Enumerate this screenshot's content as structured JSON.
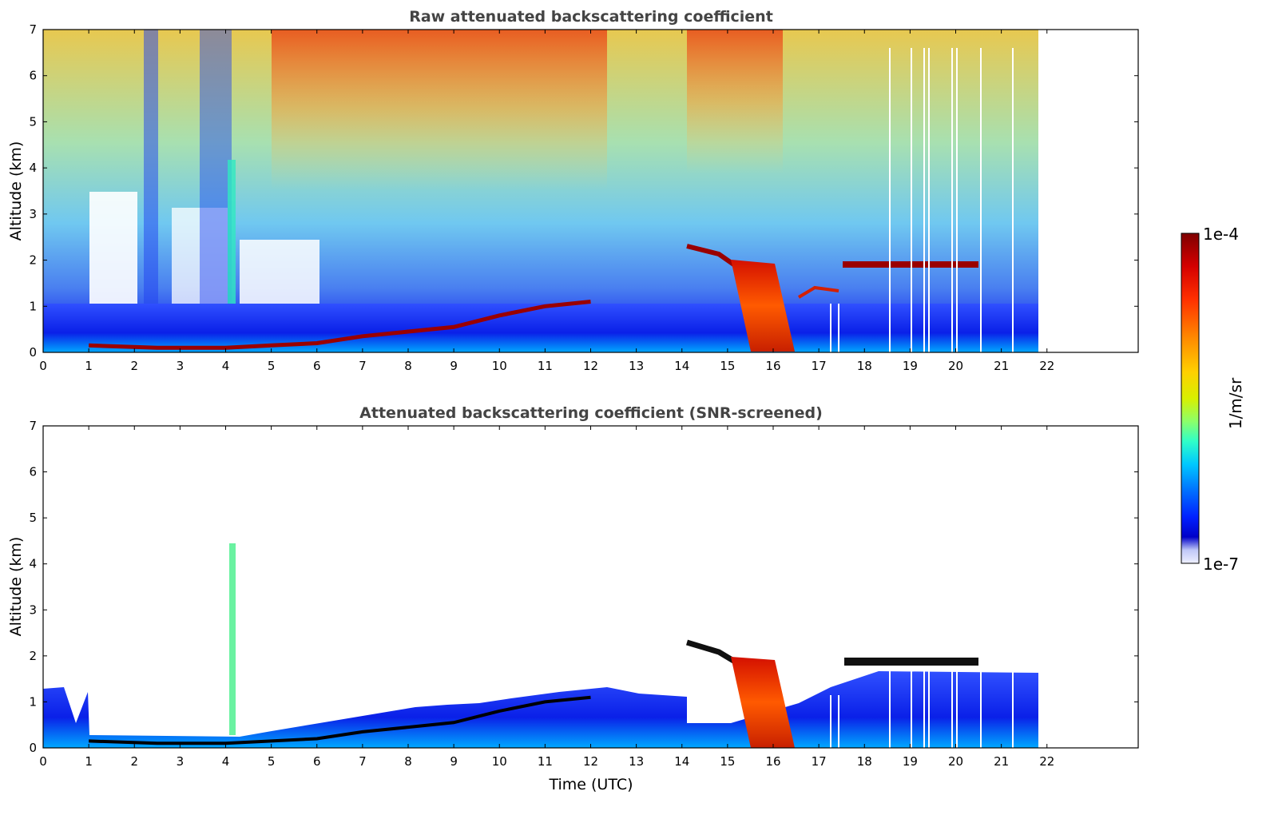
{
  "chart_data": [
    {
      "type": "heatmap",
      "title": "Raw attenuated backscattering coefficient",
      "xlabel": "",
      "ylabel": "Altitude (km)",
      "xlim": [
        0,
        24
      ],
      "ylim": [
        0,
        7
      ],
      "x_ticks": [
        "0",
        "1",
        "2",
        "3",
        "4",
        "5",
        "6",
        "7",
        "8",
        "9",
        "10",
        "11",
        "12",
        "13",
        "14",
        "15",
        "16",
        "17",
        "18",
        "19",
        "20",
        "21",
        "22"
      ],
      "y_ticks": [
        "0",
        "1",
        "2",
        "3",
        "4",
        "5",
        "6",
        "7"
      ],
      "data_end_time": 21.8,
      "boundary_layer_top": [
        {
          "x": 1.0,
          "y": 0.15
        },
        {
          "x": 2.5,
          "y": 0.1
        },
        {
          "x": 4.0,
          "y": 0.1
        },
        {
          "x": 5.0,
          "y": 0.15
        },
        {
          "x": 6.0,
          "y": 0.2
        },
        {
          "x": 7.0,
          "y": 0.35
        },
        {
          "x": 8.0,
          "y": 0.45
        },
        {
          "x": 9.0,
          "y": 0.55
        },
        {
          "x": 10.0,
          "y": 0.8
        },
        {
          "x": 11.0,
          "y": 1.0
        },
        {
          "x": 12.0,
          "y": 1.1
        }
      ],
      "cloud_layers": [
        {
          "x0": 14.0,
          "x1": 15.5,
          "y0": 2.3,
          "y1": 1.9
        },
        {
          "x0": 17.5,
          "x1": 20.5,
          "y0": 1.9,
          "y1": 1.8
        }
      ],
      "precipitation": {
        "x0": 15.2,
        "x1": 16.5,
        "y_top": 2.0
      },
      "grid": false
    },
    {
      "type": "heatmap",
      "title": "Attenuated backscattering coefficient (SNR-screened)",
      "xlabel": "Time (UTC)",
      "ylabel": "Altitude (km)",
      "xlim": [
        0,
        24
      ],
      "ylim": [
        0,
        7
      ],
      "x_ticks": [
        "0",
        "1",
        "2",
        "3",
        "4",
        "5",
        "6",
        "7",
        "8",
        "9",
        "10",
        "11",
        "12",
        "13",
        "14",
        "15",
        "16",
        "17",
        "18",
        "19",
        "20",
        "21",
        "22"
      ],
      "y_ticks": [
        "0",
        "1",
        "2",
        "3",
        "4",
        "5",
        "6",
        "7"
      ],
      "data_end_time": 21.8,
      "grid": false
    }
  ],
  "colorbar": {
    "label": "1/m/sr",
    "max_label": "1e-4",
    "min_label": "1e-7",
    "colors": [
      "#7f0000",
      "#d40000",
      "#ff3000",
      "#ff8c00",
      "#ffd000",
      "#d8f000",
      "#8cff6a",
      "#30ffc8",
      "#00c8ff",
      "#0070ff",
      "#0020ff",
      "#0000c8",
      "#c0c8f8",
      "#eef0ff"
    ]
  }
}
